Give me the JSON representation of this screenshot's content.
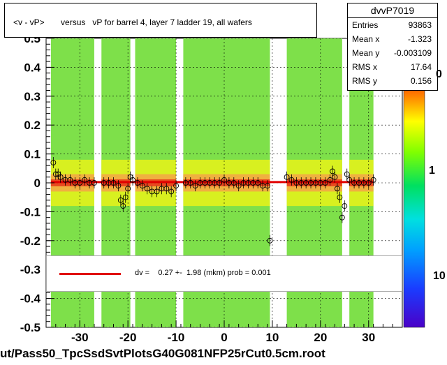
{
  "chart_data": {
    "type": "scatter",
    "title": "<v - vP>       versus   vP for barrel 4, layer 7 ladder 19, all wafers",
    "xlim": [
      -37,
      37
    ],
    "ylim": [
      -0.5,
      0.5
    ],
    "xticks": [
      -30,
      -20,
      -10,
      0,
      10,
      20,
      30
    ],
    "yticks": [
      -0.5,
      -0.4,
      -0.3,
      -0.2,
      -0.1,
      0,
      0.1,
      0.2,
      0.3,
      0.4,
      0.5
    ],
    "ytick_labels": [
      "-0.5",
      "-0.4",
      "-0.3",
      "-0.2",
      "-0.1",
      "0",
      "0.1",
      "0.2",
      "0.3",
      "0.4",
      "0.5"
    ],
    "xtick_labels": [
      "-30",
      "-20",
      "-10",
      "0",
      "10",
      "20",
      "30"
    ],
    "grid": true,
    "colorbar": {
      "scale": "log",
      "labels": [
        "1",
        "10"
      ],
      "partial_label": "0"
    },
    "occupied_bands_x": [
      [
        -36,
        -27
      ],
      [
        -25.5,
        -19.5
      ],
      [
        -18.5,
        -10
      ],
      [
        -8.5,
        9.5
      ],
      [
        13,
        24.5
      ],
      [
        26,
        31
      ]
    ],
    "fit_line": {
      "y": 0.0027,
      "color": "#e00000"
    },
    "profile_points": [
      {
        "x": -35.5,
        "y": 0.07
      },
      {
        "x": -35,
        "y": 0.03
      },
      {
        "x": -34.5,
        "y": 0.03
      },
      {
        "x": -34,
        "y": 0.02
      },
      {
        "x": -33,
        "y": 0.01
      },
      {
        "x": -32,
        "y": 0.01
      },
      {
        "x": -31,
        "y": 0.0
      },
      {
        "x": -30,
        "y": 0.0
      },
      {
        "x": -29,
        "y": 0.01
      },
      {
        "x": -28,
        "y": 0.0
      },
      {
        "x": -27,
        "y": 0.0
      },
      {
        "x": -25,
        "y": 0.0
      },
      {
        "x": -24,
        "y": 0.0
      },
      {
        "x": -23,
        "y": 0.0
      },
      {
        "x": -22,
        "y": -0.01
      },
      {
        "x": -21.5,
        "y": -0.06
      },
      {
        "x": -21,
        "y": -0.08
      },
      {
        "x": -20.5,
        "y": -0.05
      },
      {
        "x": -20,
        "y": -0.02
      },
      {
        "x": -19.5,
        "y": 0.02
      },
      {
        "x": -19,
        "y": 0.01
      },
      {
        "x": -18,
        "y": 0.0
      },
      {
        "x": -17,
        "y": -0.01
      },
      {
        "x": -16,
        "y": -0.02
      },
      {
        "x": -15,
        "y": -0.03
      },
      {
        "x": -14,
        "y": -0.03
      },
      {
        "x": -13,
        "y": -0.02
      },
      {
        "x": -12,
        "y": -0.02
      },
      {
        "x": -11,
        "y": -0.03
      },
      {
        "x": -10,
        "y": -0.01
      },
      {
        "x": -8,
        "y": 0.0
      },
      {
        "x": -7,
        "y": 0.0
      },
      {
        "x": -6,
        "y": -0.01
      },
      {
        "x": -5,
        "y": 0.0
      },
      {
        "x": -4,
        "y": 0.0
      },
      {
        "x": -3,
        "y": 0.0
      },
      {
        "x": -2,
        "y": 0.0
      },
      {
        "x": -1,
        "y": 0.0
      },
      {
        "x": 0,
        "y": 0.01
      },
      {
        "x": 1,
        "y": 0.0
      },
      {
        "x": 2,
        "y": 0.0
      },
      {
        "x": 3,
        "y": -0.01
      },
      {
        "x": 4,
        "y": 0.0
      },
      {
        "x": 5,
        "y": 0.0
      },
      {
        "x": 6,
        "y": 0.0
      },
      {
        "x": 7,
        "y": 0.0
      },
      {
        "x": 8,
        "y": -0.01
      },
      {
        "x": 9,
        "y": -0.01
      },
      {
        "x": 9.5,
        "y": -0.2
      },
      {
        "x": 13,
        "y": 0.02
      },
      {
        "x": 14,
        "y": 0.01
      },
      {
        "x": 15,
        "y": 0.0
      },
      {
        "x": 16,
        "y": 0.0
      },
      {
        "x": 17,
        "y": 0.0
      },
      {
        "x": 18,
        "y": 0.0
      },
      {
        "x": 19,
        "y": 0.0
      },
      {
        "x": 20,
        "y": 0.0
      },
      {
        "x": 21,
        "y": 0.0
      },
      {
        "x": 22,
        "y": 0.01
      },
      {
        "x": 22.5,
        "y": 0.04
      },
      {
        "x": 23,
        "y": 0.02
      },
      {
        "x": 23.5,
        "y": -0.02
      },
      {
        "x": 24,
        "y": -0.05
      },
      {
        "x": 24.5,
        "y": -0.12
      },
      {
        "x": 25,
        "y": -0.08
      },
      {
        "x": 25.5,
        "y": 0.03
      },
      {
        "x": 26,
        "y": 0.01
      },
      {
        "x": 27,
        "y": 0.0
      },
      {
        "x": 28,
        "y": 0.0
      },
      {
        "x": 29,
        "y": 0.0
      },
      {
        "x": 30,
        "y": 0.0
      },
      {
        "x": 31,
        "y": 0.01
      }
    ]
  },
  "stats": {
    "name": "dvvP7019",
    "rows": [
      {
        "key": "Entries",
        "value": "93863"
      },
      {
        "key": "Mean x",
        "value": "-1.323"
      },
      {
        "key": "Mean y",
        "value": "-0.003109"
      },
      {
        "key": "RMS x",
        "value": "17.64"
      },
      {
        "key": "RMS y",
        "value": "0.156"
      }
    ]
  },
  "fit_text": "dv =    0.27 +-  1.98 (mkm) prob = 0.001",
  "footer": "ut/Pass50_TpcSsdSvtPlotsG40G081NFP25rCut0.5cm.root"
}
